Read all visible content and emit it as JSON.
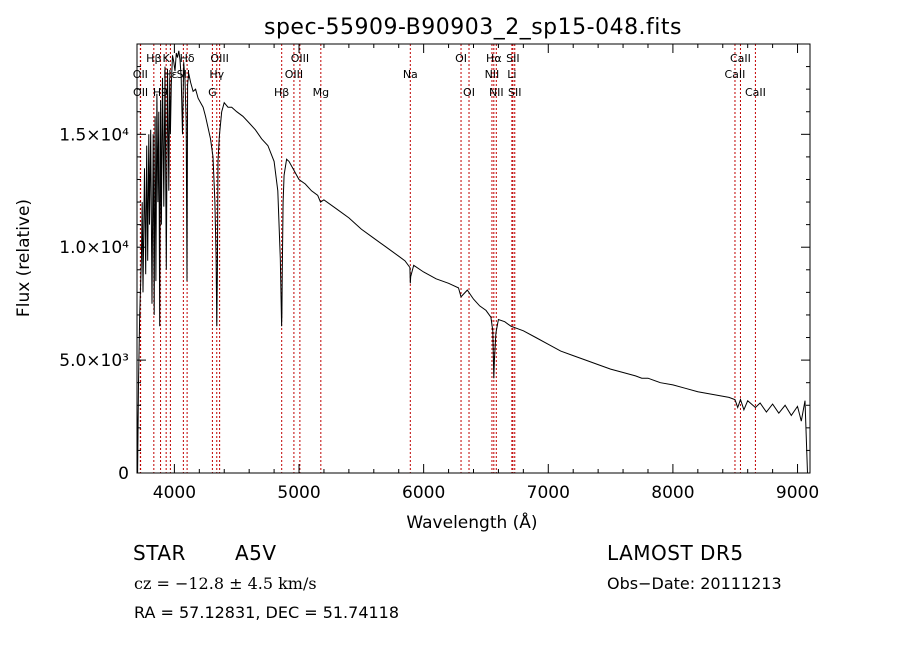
{
  "chart_data": {
    "type": "line",
    "title": "spec-55909-B90903_2_sp15-048.fits",
    "xlabel": "Wavelength (Å)",
    "ylabel": "Flux (relative)",
    "xlim": [
      3700,
      9100
    ],
    "ylim": [
      0,
      19000
    ],
    "x_ticks": [
      4000,
      5000,
      6000,
      7000,
      8000,
      9000
    ],
    "y_ticks": [
      {
        "value": 0,
        "label": "0"
      },
      {
        "value": 5000,
        "label": "5.0×10³"
      },
      {
        "value": 10000,
        "label": "1.0×10⁴"
      },
      {
        "value": 15000,
        "label": "1.5×10⁴"
      }
    ],
    "grid": false,
    "series": [
      {
        "color": "#000000",
        "x": [
          3700,
          3705,
          3712,
          3722,
          3735,
          3742,
          3748,
          3760,
          3770,
          3778,
          3786,
          3795,
          3800,
          3810,
          3820,
          3830,
          3838,
          3845,
          3852,
          3860,
          3868,
          3875,
          3882,
          3889,
          3896,
          3905,
          3915,
          3925,
          3935,
          3945,
          3955,
          3962,
          3968,
          3975,
          3985,
          3995,
          4005,
          4015,
          4025,
          4035,
          4045,
          4055,
          4065,
          4075,
          4085,
          4095,
          4101,
          4106,
          4115,
          4130,
          4150,
          4170,
          4190,
          4210,
          4230,
          4250,
          4270,
          4290,
          4310,
          4325,
          4335,
          4340,
          4345,
          4350,
          4360,
          4380,
          4400,
          4430,
          4460,
          4500,
          4550,
          4600,
          4650,
          4700,
          4750,
          4800,
          4830,
          4850,
          4860,
          4863,
          4866,
          4872,
          4880,
          4900,
          4920,
          4950,
          5000,
          5050,
          5100,
          5150,
          5172,
          5200,
          5300,
          5400,
          5500,
          5600,
          5700,
          5800,
          5850,
          5890,
          5893,
          5896,
          5920,
          6000,
          6100,
          6200,
          6280,
          6300,
          6350,
          6400,
          6450,
          6500,
          6540,
          6555,
          6563,
          6568,
          6580,
          6600,
          6650,
          6700,
          6800,
          6900,
          7000,
          7100,
          7200,
          7300,
          7400,
          7500,
          7600,
          7700,
          7750,
          7800,
          7900,
          8000,
          8100,
          8200,
          8300,
          8400,
          8450,
          8498,
          8520,
          8542,
          8570,
          8600,
          8662,
          8700,
          8750,
          8800,
          8850,
          8900,
          8950,
          9000,
          9030,
          9060,
          9080
        ],
        "y": [
          3000,
          0,
          4000,
          7000,
          9500,
          12000,
          8000,
          13500,
          8800,
          14500,
          9400,
          15000,
          11000,
          15200,
          7500,
          15000,
          7000,
          15800,
          8500,
          16800,
          12000,
          16000,
          6500,
          16500,
          11000,
          17500,
          11800,
          18000,
          9000,
          17900,
          12500,
          17500,
          15000,
          17200,
          18500,
          18200,
          17800,
          18600,
          18400,
          18700,
          18300,
          17500,
          15000,
          18200,
          17400,
          15500,
          8500,
          17200,
          17700,
          17300,
          16900,
          17000,
          16600,
          16400,
          16200,
          15800,
          15300,
          14800,
          14000,
          12000,
          9500,
          6500,
          9000,
          13800,
          14900,
          16000,
          16400,
          16200,
          16200,
          16000,
          15800,
          15500,
          15200,
          14800,
          14500,
          13800,
          12500,
          9500,
          6500,
          7000,
          9000,
          12000,
          13200,
          13900,
          13800,
          13500,
          13000,
          12800,
          12500,
          12300,
          12000,
          12100,
          11700,
          11300,
          10800,
          10400,
          10000,
          9600,
          9400,
          9100,
          8400,
          8700,
          9200,
          8900,
          8600,
          8400,
          8200,
          7800,
          8100,
          7700,
          7400,
          7200,
          6900,
          6300,
          4200,
          5000,
          6200,
          6800,
          6700,
          6500,
          6300,
          6000,
          5700,
          5400,
          5200,
          5000,
          4800,
          4600,
          4450,
          4300,
          4200,
          4200,
          4000,
          3900,
          3750,
          3600,
          3500,
          3400,
          3350,
          3250,
          2900,
          3250,
          2800,
          3200,
          2900,
          3100,
          2700,
          3050,
          2650,
          3000,
          2550,
          2950,
          2300,
          3200,
          0
        ]
      }
    ],
    "lines": [
      {
        "label": "Hβ",
        "x": 3835,
        "row": 1
      },
      {
        "label": "OII",
        "x": 3727,
        "row": 2
      },
      {
        "label": "OII",
        "x": 3729,
        "row": 3
      },
      {
        "label": "K",
        "x": 3934,
        "row": 1
      },
      {
        "label": "Hε",
        "x": 3968,
        "row": 2
      },
      {
        "label": "H9",
        "x": 3889,
        "row": 3
      },
      {
        "label": "Hδ",
        "x": 4102,
        "row": 1
      },
      {
        "label": "SII",
        "x": 4072,
        "row": 2
      },
      {
        "label": "OIII",
        "x": 4363,
        "row": 1
      },
      {
        "label": "Hγ",
        "x": 4340,
        "row": 2
      },
      {
        "label": "G",
        "x": 4305,
        "row": 3
      },
      {
        "label": "Hβ",
        "x": 4861,
        "row": 3
      },
      {
        "label": "OIII",
        "x": 4959,
        "row": 2
      },
      {
        "label": "OIII",
        "x": 5007,
        "row": 1
      },
      {
        "label": "Mg",
        "x": 5175,
        "row": 3
      },
      {
        "label": "Na",
        "x": 5893,
        "row": 2
      },
      {
        "label": "OI",
        "x": 6300,
        "row": 1
      },
      {
        "label": "OI",
        "x": 6364,
        "row": 3
      },
      {
        "label": "NII",
        "x": 6548,
        "row": 2
      },
      {
        "label": "Hα",
        "x": 6563,
        "row": 1
      },
      {
        "label": "NII",
        "x": 6583,
        "row": 3
      },
      {
        "label": "Li",
        "x": 6708,
        "row": 2
      },
      {
        "label": "SII",
        "x": 6716,
        "row": 1
      },
      {
        "label": "SII",
        "x": 6731,
        "row": 3
      },
      {
        "label": "CaII",
        "x": 8498,
        "row": 2
      },
      {
        "label": "CaII",
        "x": 8542,
        "row": 1
      },
      {
        "label": "CaII",
        "x": 8662,
        "row": 3
      }
    ],
    "line_color": "#c00000"
  },
  "info": {
    "object_class": "STAR",
    "subclass": "A5V",
    "survey": "LAMOST  DR5",
    "cz": "cz = −12.8 ± 4.5 km/s",
    "obs_date": "Obs−Date: 20111213",
    "coords": "RA =  57.12831, DEC =  51.74118"
  }
}
